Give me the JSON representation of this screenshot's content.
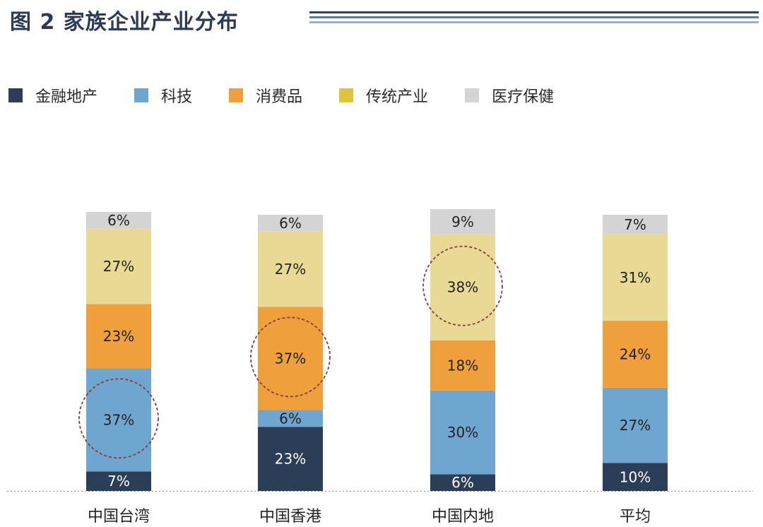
{
  "title": "图 2 家族企业产业分布",
  "colors": {
    "title": "#2c3a53",
    "deco": [
      "#2f4266",
      "#5b7aa6",
      "#9ab0cd"
    ]
  },
  "chart_data": {
    "type": "bar",
    "stacked": true,
    "title": "图 2 家族企业产业分布",
    "categories": [
      "中国台湾",
      "中国香港",
      "中国内地",
      "平均"
    ],
    "series": [
      {
        "name": "金融地产",
        "color": "#2b3d57",
        "text_color": "#ffffff",
        "values": [
          7,
          23,
          6,
          10
        ],
        "labels": [
          "7%",
          "23%",
          "6%",
          "10%"
        ]
      },
      {
        "name": "科技",
        "color": "#6fa6d0",
        "text_color": "#222222",
        "values": [
          37,
          6,
          30,
          27
        ],
        "labels": [
          "37%",
          "6%",
          "30%",
          "27%"
        ]
      },
      {
        "name": "消费品",
        "color": "#ef9f3c",
        "text_color": "#222222",
        "values": [
          23,
          37,
          18,
          24
        ],
        "labels": [
          "23%",
          "37%",
          "18%",
          "24%"
        ]
      },
      {
        "name": "传统产业",
        "color": "#e8da94",
        "text_color": "#222222",
        "values": [
          27,
          27,
          38,
          31
        ],
        "labels": [
          "27%",
          "27%",
          "38%",
          "31%"
        ]
      },
      {
        "name": "医疗保健",
        "color": "#d4d4d4",
        "text_color": "#222222",
        "values": [
          6,
          6,
          9,
          7
        ],
        "labels": [
          "6%",
          "6%",
          "9%",
          "7%"
        ]
      }
    ],
    "highlights": [
      {
        "category": "中国台湾",
        "series": "科技"
      },
      {
        "category": "中国香港",
        "series": "消费品"
      },
      {
        "category": "中国内地",
        "series": "传统产业"
      }
    ],
    "legend_swatches": [
      "#2b3d57",
      "#6fa6d0",
      "#ef9f3c",
      "#dcc43c",
      "#d4d4d4"
    ],
    "legend_position": "top-left",
    "grid": false,
    "baseline_color": "#9a9a9a",
    "highlight_color": "#8a3a3a"
  }
}
